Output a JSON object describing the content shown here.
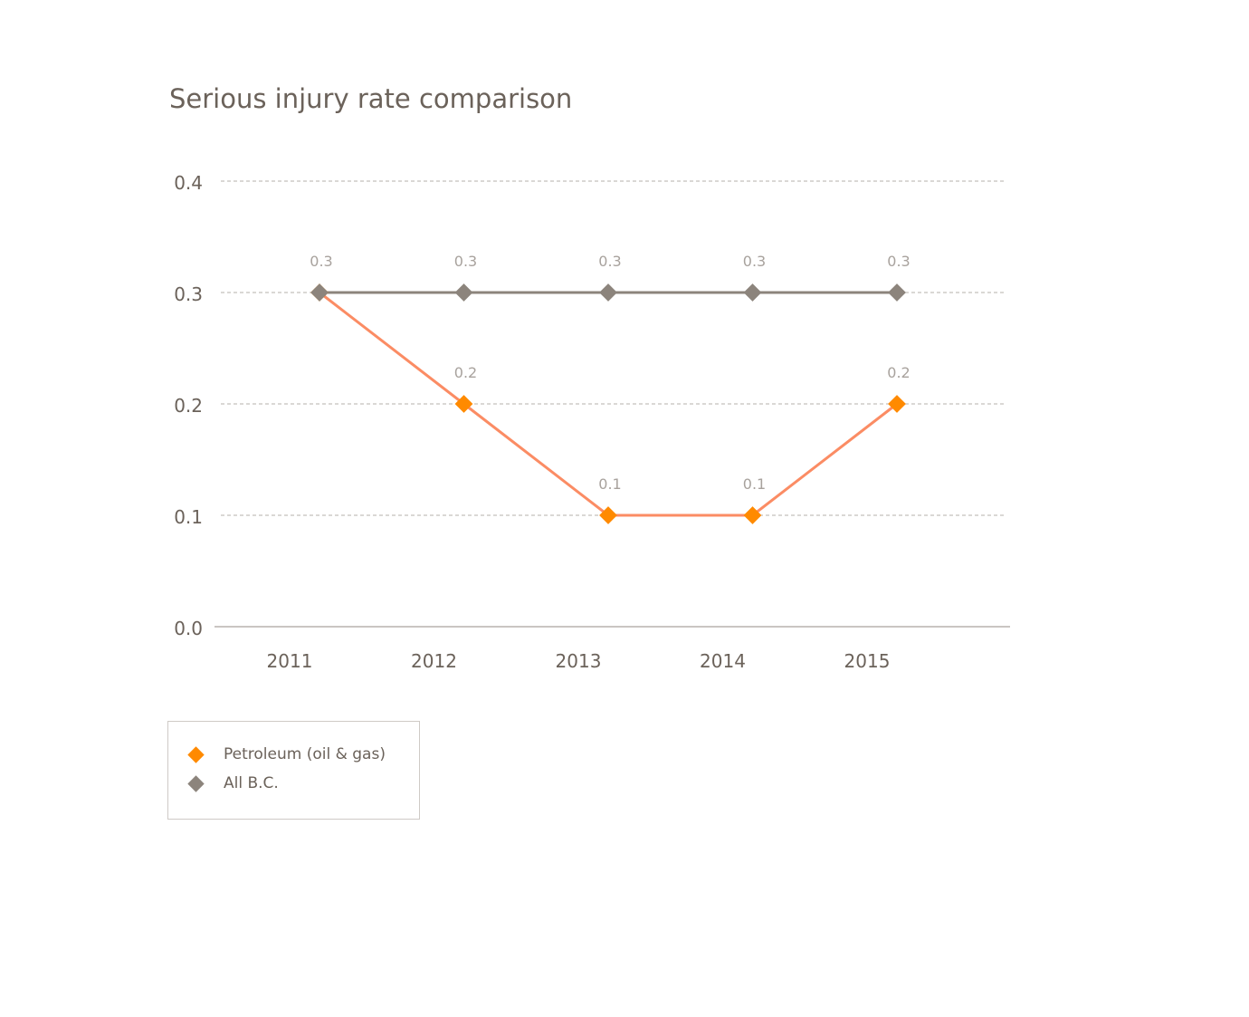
{
  "chart_data": {
    "type": "line",
    "title": "Serious injury rate comparison",
    "categories": [
      "2011",
      "2012",
      "2013",
      "2014",
      "2015"
    ],
    "yticks": [
      "0.0",
      "0.1",
      "0.2",
      "0.3",
      "0.4"
    ],
    "ylim": [
      0,
      0.4
    ],
    "grid": true,
    "legend_placement": "bottom-left",
    "series": [
      {
        "name": "Petroleum (oil & gas)",
        "values": [
          0.3,
          0.2,
          0.1,
          0.1,
          0.2
        ],
        "labels": [
          "",
          "0.2",
          "0.1",
          "0.1",
          "0.2"
        ],
        "line_color": "#fb8c64",
        "marker_color": "#ff8a00"
      },
      {
        "name": "All B.C.",
        "values": [
          0.3,
          0.3,
          0.3,
          0.3,
          0.3
        ],
        "labels": [
          "0.3",
          "0.3",
          "0.3",
          "0.3",
          "0.3"
        ],
        "line_color": "#8c847c",
        "marker_color": "#8c847c"
      }
    ]
  }
}
